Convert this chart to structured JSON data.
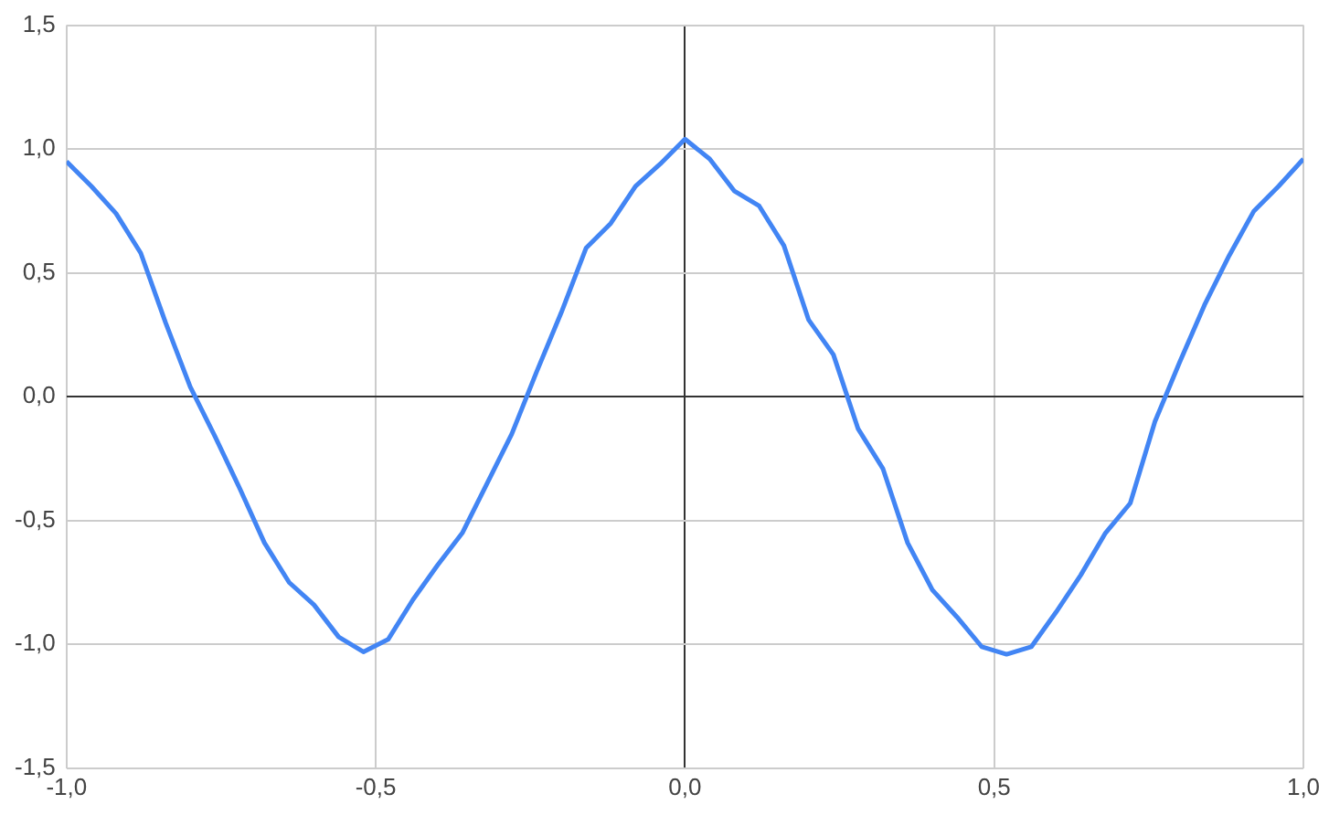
{
  "chart_data": {
    "type": "line",
    "x": [
      -1,
      -0.96,
      -0.92,
      -0.88,
      -0.84,
      -0.8,
      -0.76,
      -0.72,
      -0.68,
      -0.64,
      -0.6,
      -0.56,
      -0.52,
      -0.48,
      -0.44,
      -0.4,
      -0.36,
      -0.32,
      -0.28,
      -0.24,
      -0.2,
      -0.16,
      -0.12,
      -0.08,
      -0.04,
      0,
      0.04,
      0.08,
      0.12,
      0.16,
      0.2,
      0.24,
      0.28,
      0.32,
      0.36,
      0.4,
      0.44,
      0.48,
      0.52,
      0.56,
      0.6,
      0.64,
      0.68,
      0.72,
      0.76,
      0.8,
      0.84,
      0.88,
      0.92,
      0.96,
      1
    ],
    "series": [
      {
        "color": "#4285f4",
        "values": [
          0.95,
          0.85,
          0.74,
          0.58,
          0.3,
          0.04,
          -0.16,
          -0.37,
          -0.59,
          -0.75,
          -0.84,
          -0.97,
          -1.03,
          -0.98,
          -0.82,
          -0.68,
          -0.55,
          -0.35,
          -0.15,
          0.1,
          0.34,
          0.6,
          0.7,
          0.85,
          0.94,
          1.04,
          0.96,
          0.83,
          0.77,
          0.61,
          0.31,
          0.17,
          -0.13,
          -0.29,
          -0.59,
          -0.78,
          -0.89,
          -1.01,
          -1.04,
          -1.01,
          -0.87,
          -0.72,
          -0.55,
          -0.43,
          -0.1,
          0.14,
          0.37,
          0.57,
          0.75,
          0.85,
          0.96
        ]
      }
    ],
    "xlim": [
      -1,
      1
    ],
    "xticks": [
      {
        "value": -1,
        "label": "-1,0"
      },
      {
        "value": -0.5,
        "label": "-0,5"
      },
      {
        "value": 0,
        "label": "0,0"
      },
      {
        "value": 0.5,
        "label": "0,5"
      },
      {
        "value": 1,
        "label": "1,0"
      }
    ],
    "ylim": [
      -1.5,
      1.5
    ],
    "yticks": [
      {
        "value": -1.5,
        "label": "-1,5"
      },
      {
        "value": -1,
        "label": "-1,0"
      },
      {
        "value": -0.5,
        "label": "-0,5"
      },
      {
        "value": 0,
        "label": "0,0"
      },
      {
        "value": 0.5,
        "label": "0,5"
      },
      {
        "value": 1,
        "label": "1,0"
      },
      {
        "value": 1.5,
        "label": "1,5"
      }
    ],
    "grid": true,
    "legend": false,
    "marker": "none",
    "line_style": "solid"
  }
}
